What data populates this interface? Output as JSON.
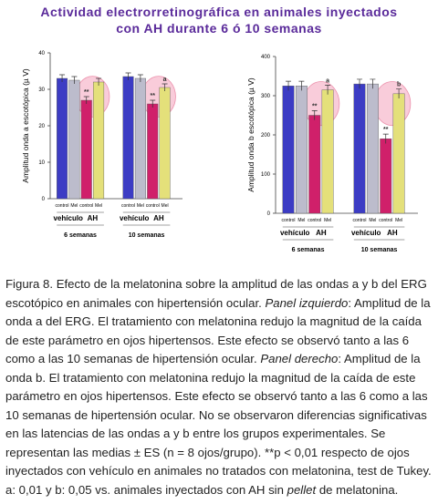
{
  "title_lines": [
    "Actividad electrorretinográfica en animales inyectados",
    "con AH durante 6 ó 10 semanas"
  ],
  "chart_data": [
    {
      "type": "bar",
      "ylabel": "Amplitud onda a escotópica (µ V)",
      "categories": [
        "6 semanas",
        "10 semanas"
      ],
      "subgroups": [
        "vehículo",
        "AH"
      ],
      "bar_labels": [
        "control",
        "Mel",
        "control",
        "Mel"
      ],
      "ylim": [
        0,
        40
      ],
      "yticks": [
        0,
        10,
        20,
        30,
        40
      ],
      "series": [
        {
          "color": "#3c3cc4",
          "values": [
            33,
            33.5
          ],
          "errors": [
            1,
            1
          ]
        },
        {
          "color": "#bcbccc",
          "values": [
            32.5,
            33
          ],
          "errors": [
            1,
            1
          ]
        },
        {
          "color": "#d0206a",
          "values": [
            27,
            26
          ],
          "errors": [
            1,
            1
          ],
          "annotations": [
            "**",
            "**"
          ]
        },
        {
          "color": "#e4e07a",
          "values": [
            32,
            30.5
          ],
          "errors": [
            1,
            1
          ],
          "annotations": [
            null,
            "a"
          ]
        }
      ]
    },
    {
      "type": "bar",
      "ylabel": "Amplitud onda b escotópica (µ V)",
      "categories": [
        "6 semanas",
        "10 semanas"
      ],
      "subgroups": [
        "vehículo",
        "AH"
      ],
      "bar_labels": [
        "control",
        "Mel",
        "control",
        "Mel"
      ],
      "ylim": [
        0,
        400
      ],
      "yticks": [
        0,
        100,
        200,
        300,
        400
      ],
      "series": [
        {
          "color": "#3c3cc4",
          "values": [
            325,
            330
          ],
          "errors": [
            12,
            12
          ]
        },
        {
          "color": "#bcbccc",
          "values": [
            325,
            330
          ],
          "errors": [
            12,
            12
          ]
        },
        {
          "color": "#d0206a",
          "values": [
            250,
            190
          ],
          "errors": [
            12,
            12
          ],
          "annotations": [
            "**",
            "**"
          ]
        },
        {
          "color": "#e4e07a",
          "values": [
            315,
            305
          ],
          "errors": [
            12,
            12
          ],
          "annotations": [
            "a",
            "b"
          ]
        }
      ]
    }
  ],
  "caption": [
    {
      "text": "Figura 8. Efecto de la melatonina sobre la amplitud de las ondas a y b del ERG escotópico en animales con hipertensión ocular. ",
      "italic": false
    },
    {
      "text": "Panel izquierdo",
      "italic": true
    },
    {
      "text": ": Amplitud de la onda a del ERG. El tratamiento con melatonina redujo la magnitud de la caída de este parámetro en ojos hipertensos. Este efecto se observó tanto a las 6 como a las 10 semanas de hipertensión ocular. ",
      "italic": false
    },
    {
      "text": "Panel derecho",
      "italic": true
    },
    {
      "text": ": Amplitud de la onda b. El tratamiento con melatonina redujo la magnitud de la caída de este parámetro en ojos hipertensos. Este efecto se observó tanto a las 6 como a las 10 semanas de hipertensión ocular. No se observaron diferencias significativas en las latencias de las ondas a y b entre los grupos experimentales. Se representan las medias ± ES (n = 8 ojos/grupo). **p < 0,01 respecto de ojos inyectados con vehículo en animales no tratados con melatonina, test de Tukey. a: 0,01 y b: 0,05 vs. animales inyectados con AH sin ",
      "italic": false
    },
    {
      "text": "pellet",
      "italic": true
    },
    {
      "text": " de melatonina.",
      "italic": false
    }
  ]
}
